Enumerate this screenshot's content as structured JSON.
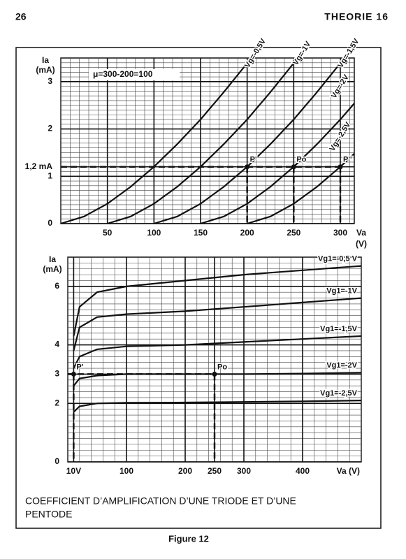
{
  "header": {
    "page_number": "26",
    "running_title": "THEORIE 16"
  },
  "chart_data": [
    {
      "type": "line",
      "color": "#111111",
      "grid": true,
      "ylabel": [
        "Ia",
        "(mA)"
      ],
      "xlabel": [
        "Va",
        "(V)"
      ],
      "note": "μ=300-200=100",
      "xlim": [
        0,
        315
      ],
      "ylim": [
        0,
        3.5
      ],
      "xticks": [
        50,
        100,
        150,
        200,
        250,
        300
      ],
      "yticks": [
        0,
        1,
        {
          "value": 1.2,
          "label": "1,2 mA"
        },
        2,
        3
      ],
      "series": [
        {
          "name": "Vg=-0,5V",
          "x": [
            0,
            25,
            50,
            75,
            100,
            125,
            150,
            175,
            200
          ],
          "values": [
            0,
            0.15,
            0.42,
            0.78,
            1.2,
            1.68,
            2.2,
            2.78,
            3.39
          ]
        },
        {
          "name": "Vg=-1V",
          "x": [
            50,
            75,
            100,
            125,
            150,
            175,
            200,
            225,
            250
          ],
          "values": [
            0,
            0.15,
            0.42,
            0.78,
            1.2,
            1.68,
            2.2,
            2.78,
            3.39
          ]
        },
        {
          "name": "Vg=-1,5V",
          "x": [
            100,
            125,
            150,
            175,
            200,
            225,
            250,
            275,
            300
          ],
          "values": [
            0,
            0.15,
            0.42,
            0.78,
            1.2,
            1.68,
            2.2,
            2.78,
            3.39
          ]
        },
        {
          "name": "Vg=-2V",
          "x": [
            150,
            175,
            200,
            225,
            250,
            275,
            300,
            315
          ],
          "values": [
            0,
            0.15,
            0.42,
            0.78,
            1.2,
            1.68,
            2.2,
            2.54
          ]
        },
        {
          "name": "Vg=-2,5V",
          "x": [
            200,
            225,
            250,
            275,
            300,
            315
          ],
          "values": [
            0,
            0.15,
            0.42,
            0.78,
            1.2,
            1.48
          ]
        }
      ],
      "annotations": [
        {
          "text": "P'",
          "x": 200,
          "y": 1.2
        },
        {
          "text": "Po",
          "x": 250,
          "y": 1.2
        },
        {
          "text": "P''",
          "x": 300,
          "y": 1.2
        }
      ]
    },
    {
      "type": "line",
      "color": "#111111",
      "grid": true,
      "ylabel": [
        "Ia",
        "(mA)"
      ],
      "xlabel": [
        "Va (V)"
      ],
      "xlim": [
        0,
        500
      ],
      "ylim": [
        0,
        7
      ],
      "xticks": [
        {
          "value": 10,
          "label": "10V"
        },
        100,
        200,
        250,
        300,
        400
      ],
      "yticks": [
        0,
        2,
        3,
        4,
        6
      ],
      "series": [
        {
          "name": "Vg1=-0,5 V",
          "x": [
            10,
            20,
            50,
            100,
            200,
            300,
            400,
            500
          ],
          "values": [
            4.3,
            5.3,
            5.8,
            6.0,
            6.2,
            6.4,
            6.55,
            6.7
          ]
        },
        {
          "name": "Vg1=-1V",
          "x": [
            10,
            20,
            50,
            100,
            200,
            300,
            400,
            500
          ],
          "values": [
            3.8,
            4.6,
            4.95,
            5.05,
            5.15,
            5.3,
            5.45,
            5.6
          ]
        },
        {
          "name": "Vg1=-1,5V",
          "x": [
            10,
            20,
            50,
            100,
            200,
            300,
            400,
            500
          ],
          "values": [
            3.2,
            3.6,
            3.85,
            3.95,
            4.0,
            4.1,
            4.2,
            4.3
          ]
        },
        {
          "name": "Vg1=-2V",
          "x": [
            10,
            20,
            50,
            100,
            200,
            300,
            400,
            500
          ],
          "values": [
            2.6,
            2.85,
            2.95,
            3.0,
            3.0,
            3.0,
            3.02,
            3.05
          ]
        },
        {
          "name": "Vg1=-2,5V",
          "x": [
            10,
            20,
            50,
            100,
            200,
            300,
            400,
            500
          ],
          "values": [
            1.7,
            1.9,
            2.0,
            2.02,
            2.03,
            2.05,
            2.07,
            2.1
          ]
        }
      ],
      "annotations": [
        {
          "text": "P'",
          "x": 10,
          "y": 3
        },
        {
          "text": "Po",
          "x": 250,
          "y": 3
        }
      ]
    }
  ],
  "caption": [
    "COEFFICIENT D’AMPLIFICATION D’UNE TRIODE ET D’UNE",
    "PENTODE"
  ],
  "figure_label": "Figure 12"
}
